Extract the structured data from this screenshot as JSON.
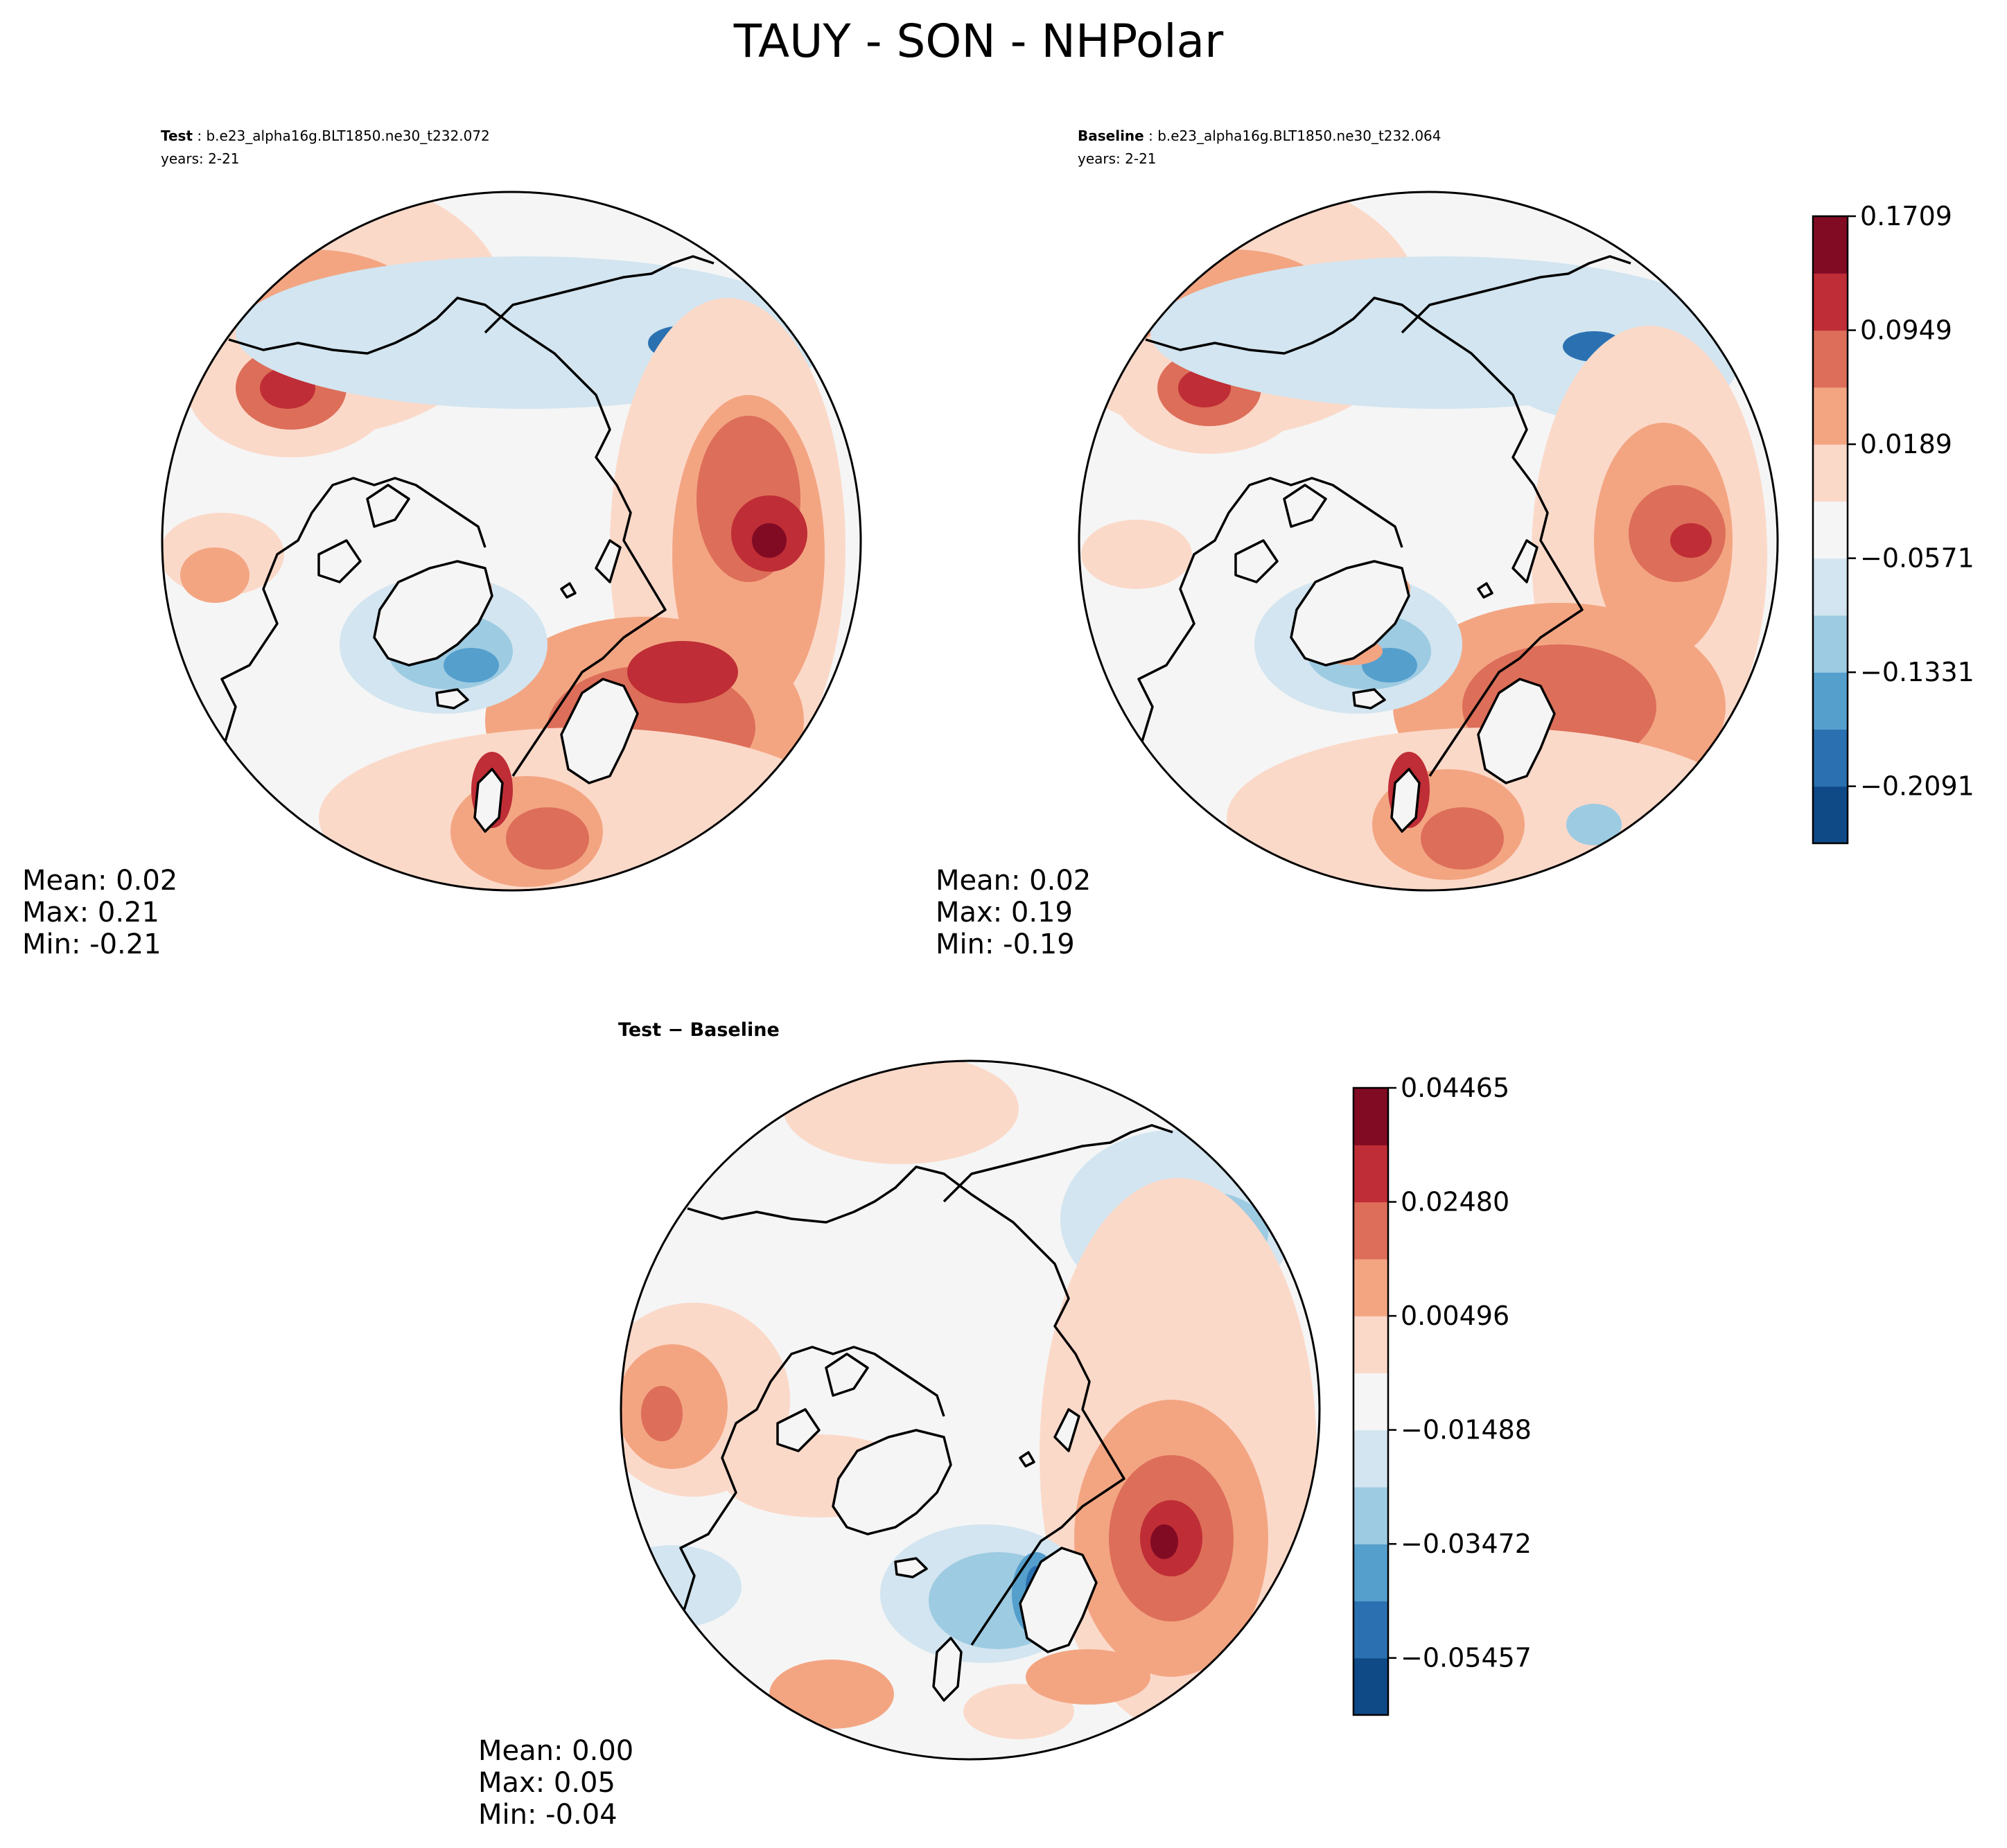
{
  "figure": {
    "suptitle": "TAUY - SON - NHPolar"
  },
  "panels": {
    "test": {
      "label": "Test",
      "case": "b.e23_alpha16g.BLT1850.ne30_t232.072",
      "years": "years: 2-21",
      "stats": {
        "mean": "Mean:  0.02",
        "max": "Max:  0.21",
        "min": "Min: -0.21"
      }
    },
    "baseline": {
      "label": "Baseline",
      "case": "b.e23_alpha16g.BLT1850.ne30_t232.064",
      "years": "years: 2-21",
      "stats": {
        "mean": "Mean:  0.02",
        "max": "Max:  0.19",
        "min": "Min: -0.19"
      }
    },
    "diff": {
      "title": "Test − Baseline",
      "stats": {
        "mean": "Mean:  0.00",
        "max": "Max:  0.05",
        "min": "Min: -0.04"
      }
    }
  },
  "colorbars": {
    "main": {
      "ticks": [
        "−0.2091",
        "−0.1331",
        "−0.0571",
        "0.0189",
        "0.0949",
        "0.1709"
      ]
    },
    "diff": {
      "ticks": [
        "−0.05457",
        "−0.03472",
        "−0.01488",
        "0.00496",
        "0.02480",
        "0.04465"
      ]
    }
  },
  "palette": [
    "#0f4a87",
    "#2b71b1",
    "#559fcd",
    "#9dcbe2",
    "#d2e5f0",
    "#f5f5f5",
    "#fbd9c9",
    "#f3a582",
    "#dd6e59",
    "#bf2d36",
    "#820b24"
  ],
  "chart_data": [
    {
      "type": "heatmap",
      "title": "Test: b.e23_alpha16g.BLT1850.ne30_t232.072",
      "subtitle": "years: 2-21",
      "projection": "North Polar Stereographic",
      "variable": "TAUY",
      "season": "SON",
      "stats": {
        "mean": 0.02,
        "max": 0.21,
        "min": -0.21
      },
      "color_levels": [
        -0.2091,
        -0.1331,
        -0.0571,
        0.0189,
        0.0949,
        0.1709
      ]
    },
    {
      "type": "heatmap",
      "title": "Baseline: b.e23_alpha16g.BLT1850.ne30_t232.064",
      "subtitle": "years: 2-21",
      "projection": "North Polar Stereographic",
      "variable": "TAUY",
      "season": "SON",
      "stats": {
        "mean": 0.02,
        "max": 0.19,
        "min": -0.19
      },
      "color_levels": [
        -0.2091,
        -0.1331,
        -0.0571,
        0.0189,
        0.0949,
        0.1709
      ]
    },
    {
      "type": "heatmap",
      "title": "Test − Baseline",
      "projection": "North Polar Stereographic",
      "variable": "TAUY",
      "season": "SON",
      "stats": {
        "mean": 0.0,
        "max": 0.05,
        "min": -0.04
      },
      "color_levels": [
        -0.05457,
        -0.03472,
        -0.01488,
        0.00496,
        0.0248,
        0.04465
      ]
    }
  ]
}
